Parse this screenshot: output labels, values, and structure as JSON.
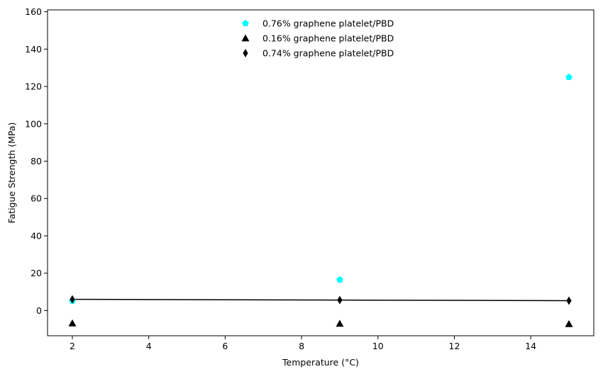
{
  "chart_data": {
    "type": "scatter",
    "title": "",
    "xlabel": "Temperature (°C)",
    "ylabel": "Fatigue Strength (MPa)",
    "xlim": [
      1.35,
      15.65
    ],
    "ylim": [
      -13.5,
      161
    ],
    "xticks": [
      2,
      4,
      6,
      8,
      10,
      12,
      14
    ],
    "yticks": [
      0,
      20,
      40,
      60,
      80,
      100,
      120,
      140,
      160
    ],
    "grid": false,
    "legend_position": "top-center",
    "series": [
      {
        "name": "0.76% graphene platelet/PBD",
        "marker": "pentagon",
        "color": "#00ffff",
        "x": [
          2,
          9,
          15
        ],
        "y": [
          5.2,
          16.5,
          125.0
        ]
      },
      {
        "name": "0.16% graphene platelet/PBD",
        "marker": "triangle",
        "color": "#000000",
        "x": [
          2,
          9,
          15
        ],
        "y": [
          -6.8,
          -7.0,
          -7.2
        ]
      },
      {
        "name": "0.74% graphene platelet/PBD",
        "marker": "thin-diamond",
        "color": "#000000",
        "x": [
          2,
          9,
          15
        ],
        "y": [
          6.0,
          5.6,
          5.3
        ]
      }
    ],
    "trend_line": {
      "color": "#000000",
      "x": [
        2,
        9,
        15
      ],
      "y": [
        6.0,
        5.6,
        5.3
      ]
    }
  }
}
